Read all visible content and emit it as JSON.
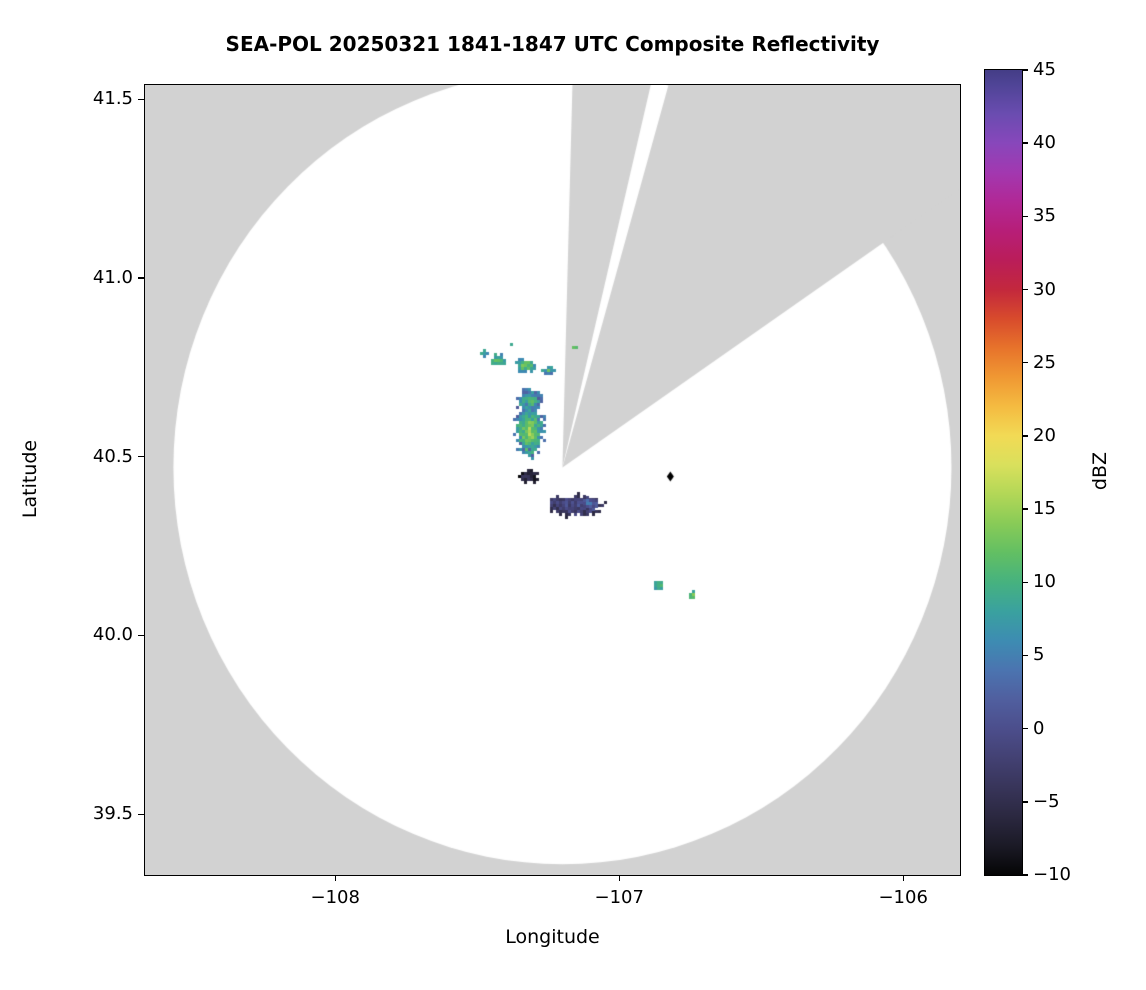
{
  "chart_data": {
    "type": "heatmap",
    "title": "SEA-POL 20250321 1841-1847 UTC Composite Reflectivity",
    "xlabel": "Longitude",
    "ylabel": "Latitude",
    "xlim": [
      -108.67,
      -105.8
    ],
    "ylim": [
      39.33,
      41.54
    ],
    "xticks": {
      "values": [
        -108,
        -107,
        -106
      ],
      "labels": [
        "−108",
        "−107",
        "−106"
      ]
    },
    "yticks": {
      "values": [
        39.5,
        40.0,
        40.5,
        41.0,
        41.5
      ],
      "labels": [
        "39.5",
        "40.0",
        "40.5",
        "41.0",
        "41.5"
      ]
    },
    "grid": false,
    "legend": "none",
    "colorbar": {
      "label": "dBZ",
      "min": -10,
      "max": 45,
      "tick_values": [
        45,
        40,
        35,
        30,
        25,
        20,
        15,
        10,
        5,
        0,
        -5,
        -10
      ],
      "tick_labels": [
        "45",
        "40",
        "35",
        "30",
        "25",
        "20",
        "15",
        "10",
        "5",
        "0",
        "−5",
        "−10"
      ]
    },
    "colormap": [
      [
        -10,
        "#050505"
      ],
      [
        -8,
        "#1b1a26"
      ],
      [
        -6,
        "#2b2840"
      ],
      [
        -4,
        "#38355a"
      ],
      [
        -2,
        "#434173"
      ],
      [
        0,
        "#4c4e8c"
      ],
      [
        2,
        "#505f9f"
      ],
      [
        4,
        "#4b74b0"
      ],
      [
        6,
        "#3d8cb2"
      ],
      [
        8,
        "#3aa19f"
      ],
      [
        10,
        "#46b27f"
      ],
      [
        12,
        "#62bf63"
      ],
      [
        14,
        "#88cb57"
      ],
      [
        16,
        "#b2d757"
      ],
      [
        18,
        "#d9e05c"
      ],
      [
        20,
        "#f2da55"
      ],
      [
        22,
        "#f4bb41"
      ],
      [
        24,
        "#f09833"
      ],
      [
        26,
        "#e7732b"
      ],
      [
        28,
        "#d84b2c"
      ],
      [
        30,
        "#c3283d"
      ],
      [
        32,
        "#ba1d59"
      ],
      [
        34,
        "#b71e78"
      ],
      [
        36,
        "#b12896"
      ],
      [
        38,
        "#a238b0"
      ],
      [
        40,
        "#8847bb"
      ],
      [
        42,
        "#6a4cb0"
      ],
      [
        44,
        "#4f4496"
      ],
      [
        45,
        "#443d86"
      ]
    ],
    "radar": {
      "center_lon": -107.2,
      "center_lat": 40.47,
      "radius_lon_deg": 1.37,
      "radius_lat_deg": 1.11,
      "coverage_color": "#ffffff",
      "outside_color": "#d2d2d2",
      "blocked_sectors_az_deg": [
        [
          1.5,
          13
        ],
        [
          15.5,
          55
        ]
      ]
    },
    "site_marker": {
      "lon": -106.82,
      "lat": 40.445,
      "shape": "diamond",
      "color": "#000000"
    },
    "echo_regions": [
      {
        "lon": -107.475,
        "lat": 40.79,
        "rx": 0.013,
        "ry": 0.009,
        "core": 10,
        "edge": 7
      },
      {
        "lon": -107.425,
        "lat": 40.77,
        "rx": 0.03,
        "ry": 0.016,
        "core": 13,
        "edge": 7
      },
      {
        "lon": -107.38,
        "lat": 40.815,
        "rx": 0.009,
        "ry": 0.006,
        "core": 9,
        "edge": 7
      },
      {
        "lon": -107.33,
        "lat": 40.755,
        "rx": 0.038,
        "ry": 0.02,
        "core": 14,
        "edge": 6
      },
      {
        "lon": -107.25,
        "lat": 40.74,
        "rx": 0.022,
        "ry": 0.013,
        "core": 11,
        "edge": 6
      },
      {
        "lon": -107.16,
        "lat": 40.805,
        "rx": 0.013,
        "ry": 0.009,
        "core": 11,
        "edge": 8
      },
      {
        "lon": -107.315,
        "lat": 40.655,
        "rx": 0.05,
        "ry": 0.038,
        "core": 12,
        "edge": 3
      },
      {
        "lon": -107.315,
        "lat": 40.57,
        "rx": 0.055,
        "ry": 0.075,
        "core": 16,
        "edge": 4
      },
      {
        "lon": -107.32,
        "lat": 40.445,
        "rx": 0.036,
        "ry": 0.022,
        "core": -4,
        "edge": -8
      },
      {
        "lon": -107.155,
        "lat": 40.365,
        "rx": 0.1,
        "ry": 0.032,
        "core": 0,
        "edge": -4
      },
      {
        "lon": -107.1,
        "lat": 40.368,
        "rx": 0.03,
        "ry": 0.018,
        "core": 4,
        "edge": 0
      },
      {
        "lon": -106.86,
        "lat": 40.14,
        "rx": 0.016,
        "ry": 0.011,
        "core": 12,
        "edge": 9
      },
      {
        "lon": -106.74,
        "lat": 40.115,
        "rx": 0.013,
        "ry": 0.014,
        "core": 13,
        "edge": 9
      }
    ]
  }
}
